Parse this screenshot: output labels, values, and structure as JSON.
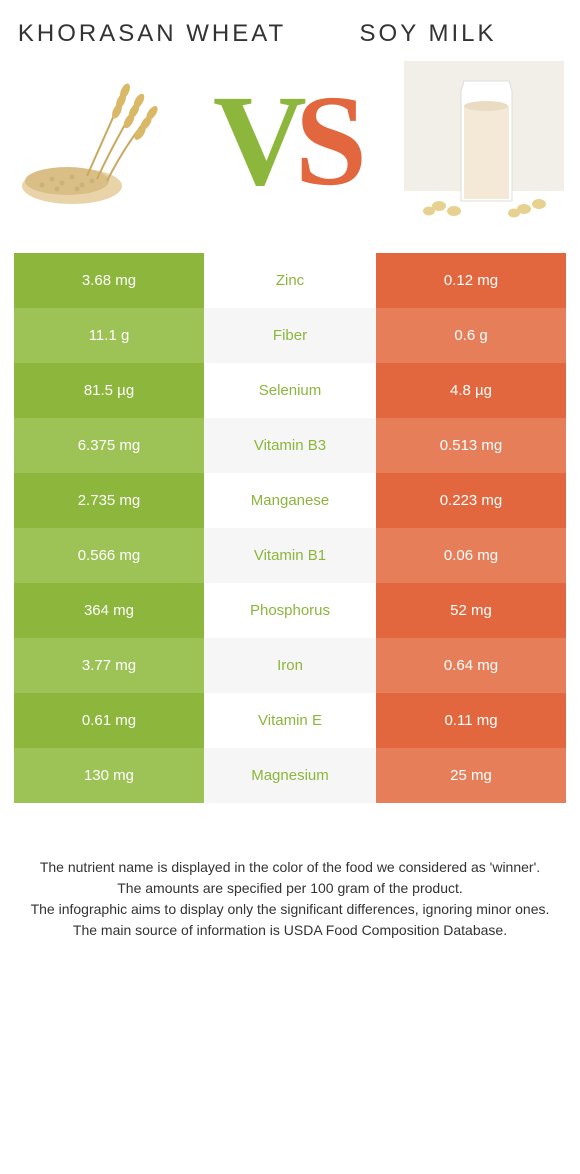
{
  "header": {
    "left_title": "Khorasan wheat",
    "right_title": "Soy milk"
  },
  "colors": {
    "green": "#8cb63c",
    "green_light": "#9dc357",
    "orange": "#e2673e",
    "orange_light": "#e67e5a",
    "row_alt_bg": "#f6f6f6",
    "text": "#333333"
  },
  "rows": [
    {
      "left": "3.68 mg",
      "mid": "Zinc",
      "right": "0.12 mg",
      "winner": "green"
    },
    {
      "left": "11.1 g",
      "mid": "Fiber",
      "right": "0.6 g",
      "winner": "green"
    },
    {
      "left": "81.5 µg",
      "mid": "Selenium",
      "right": "4.8 µg",
      "winner": "green"
    },
    {
      "left": "6.375 mg",
      "mid": "Vitamin B3",
      "right": "0.513 mg",
      "winner": "green"
    },
    {
      "left": "2.735 mg",
      "mid": "Manganese",
      "right": "0.223 mg",
      "winner": "green"
    },
    {
      "left": "0.566 mg",
      "mid": "Vitamin B1",
      "right": "0.06 mg",
      "winner": "green"
    },
    {
      "left": "364 mg",
      "mid": "Phosphorus",
      "right": "52 mg",
      "winner": "green"
    },
    {
      "left": "3.77 mg",
      "mid": "Iron",
      "right": "0.64 mg",
      "winner": "green"
    },
    {
      "left": "0.61 mg",
      "mid": "Vitamin E",
      "right": "0.11 mg",
      "winner": "green"
    },
    {
      "left": "130 mg",
      "mid": "Magnesium",
      "right": "25 mg",
      "winner": "green"
    }
  ],
  "footer": {
    "line1": "The nutrient name is displayed in the color of the food we considered as 'winner'.",
    "line2": "The amounts are specified per 100 gram of the product.",
    "line3": "The infographic aims to display only the significant differences, ignoring minor ones.",
    "line4": "The main source of information is USDA Food Composition Database."
  }
}
